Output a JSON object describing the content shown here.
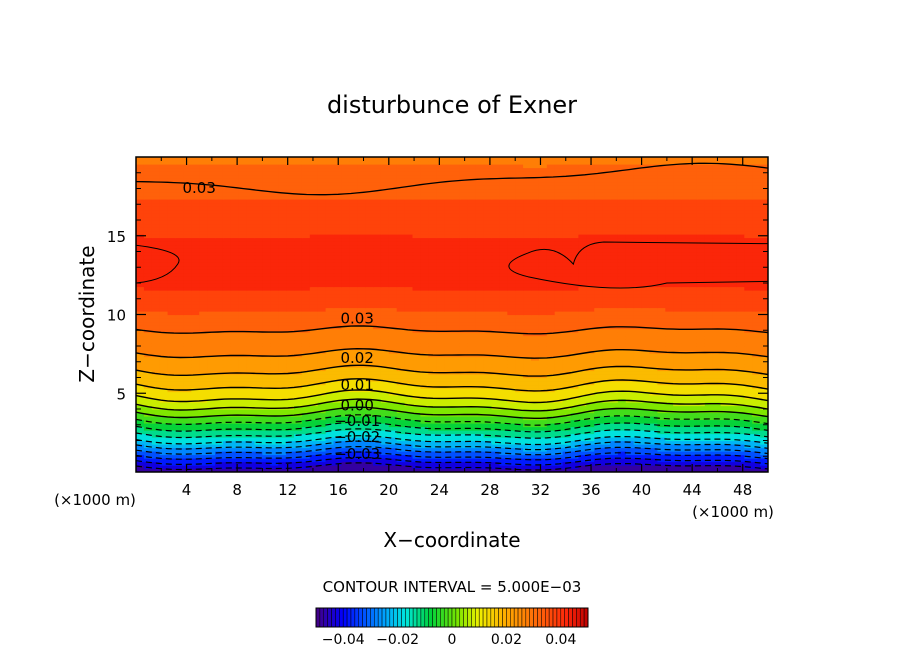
{
  "chart_data": {
    "type": "heatmap",
    "title": "disturbunce of Exner",
    "xlabel": "X−coordinate",
    "ylabel": "Z−coordinate",
    "x_unit_left": "(×1000 m)",
    "x_unit_right": "(×1000 m)",
    "xlim": [
      0,
      50
    ],
    "ylim": [
      0,
      20
    ],
    "x_ticks": [
      4,
      8,
      12,
      16,
      20,
      24,
      28,
      32,
      36,
      40,
      44,
      48
    ],
    "x_tick_labels": [
      "4",
      "8",
      "12",
      "16",
      "20",
      "24",
      "28",
      "32",
      "36",
      "40",
      "44",
      "48"
    ],
    "y_ticks": [
      5,
      10,
      15
    ],
    "y_tick_labels": [
      "5",
      "10",
      "15"
    ],
    "contour_interval_text": "CONTOUR INTERVAL = 5.000E−03",
    "contour_labels": [
      {
        "text": "0.03",
        "x": 5,
        "y": 18.1
      },
      {
        "text": "0.03",
        "x": 17.5,
        "y": 9.8
      },
      {
        "text": "0.02",
        "x": 17.5,
        "y": 7.3
      },
      {
        "text": "0.01",
        "x": 17.5,
        "y": 5.6
      },
      {
        "text": "0.00",
        "x": 17.5,
        "y": 4.3
      },
      {
        "text": "−0.01",
        "x": 17.5,
        "y": 3.3
      },
      {
        "text": "−0.02",
        "x": 17.5,
        "y": 2.3
      },
      {
        "text": "−0.03",
        "x": 17.5,
        "y": 1.2
      }
    ],
    "field_profile": {
      "z": [
        0,
        1,
        2,
        3,
        4,
        5,
        6,
        7,
        8,
        9,
        10,
        11,
        12,
        13,
        14,
        15,
        16,
        17,
        18,
        19,
        20
      ],
      "value": [
        -0.05,
        -0.035,
        -0.02,
        -0.008,
        0.003,
        0.012,
        0.018,
        0.023,
        0.027,
        0.03,
        0.034,
        0.038,
        0.041,
        0.043,
        0.042,
        0.04,
        0.038,
        0.036,
        0.033,
        0.031,
        0.029
      ]
    },
    "colorbar": {
      "min": -0.05,
      "max": 0.05,
      "tick_values": [
        -0.04,
        -0.02,
        0,
        0.02,
        0.04
      ],
      "tick_labels": [
        "−0.04",
        "−0.02",
        "0",
        "0.02",
        "0.04"
      ]
    }
  }
}
